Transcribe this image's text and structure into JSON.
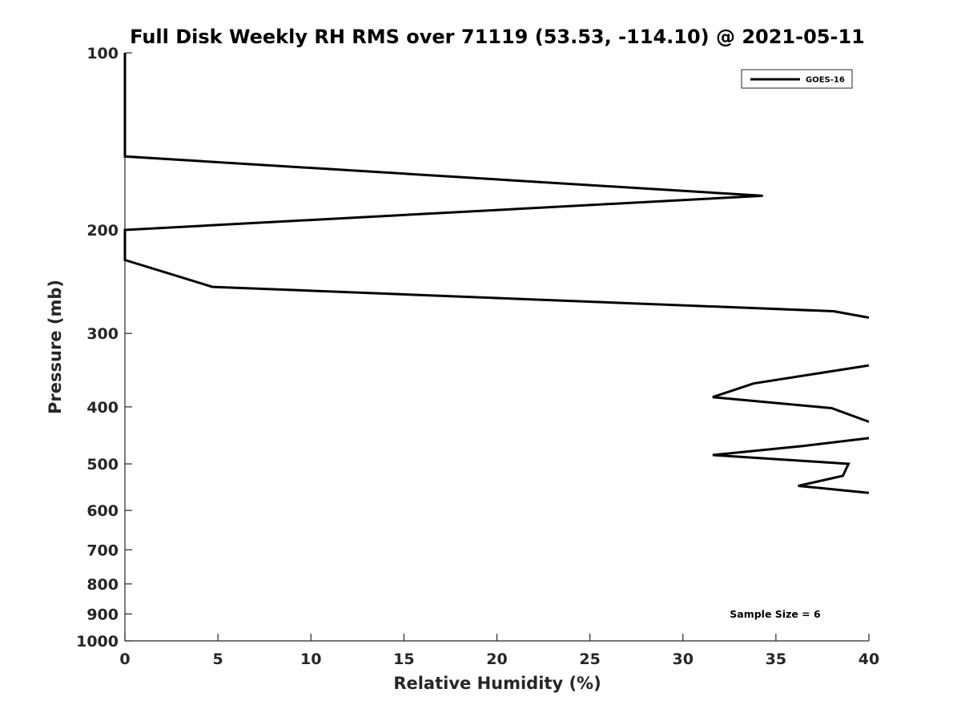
{
  "chart_data": {
    "type": "line",
    "title": "Full Disk Weekly RH RMS over 71119 (53.53, -114.10) @ 2021-05-11",
    "xlabel": "Relative Humidity (%)",
    "ylabel": "Pressure (mb)",
    "xlim": [
      0,
      40
    ],
    "ylim": [
      100,
      1000
    ],
    "y_scale": "log",
    "y_reversed": true,
    "grid": false,
    "x_ticks": [
      "0",
      "5",
      "10",
      "15",
      "20",
      "25",
      "30",
      "35",
      "40"
    ],
    "y_ticks": [
      "100",
      "200",
      "300",
      "400",
      "500",
      "600",
      "700",
      "800",
      "900",
      "1000"
    ],
    "legend": {
      "position": "top-right",
      "entries": [
        "GOES-16"
      ]
    },
    "annotation": "Sample Size = 6",
    "line_color": "#000000",
    "series": [
      {
        "name": "GOES-16",
        "segments": [
          [
            [
              0,
              100
            ],
            [
              0,
              150
            ],
            [
              34.3,
              175
            ],
            [
              0,
              200
            ],
            [
              0,
              225
            ],
            [
              4.7,
              250
            ],
            [
              38.1,
              275
            ],
            [
              40,
              282
            ]
          ],
          [
            [
              40,
              340
            ],
            [
              33.8,
              365
            ],
            [
              31.6,
              385
            ],
            [
              38.0,
              402
            ],
            [
              40,
              424
            ]
          ],
          [
            [
              40,
              452
            ],
            [
              36.5,
              466
            ],
            [
              31.6,
              483
            ],
            [
              38.9,
              500
            ],
            [
              38.6,
              524
            ],
            [
              36.2,
              545
            ],
            [
              40,
              560
            ]
          ]
        ]
      }
    ]
  }
}
